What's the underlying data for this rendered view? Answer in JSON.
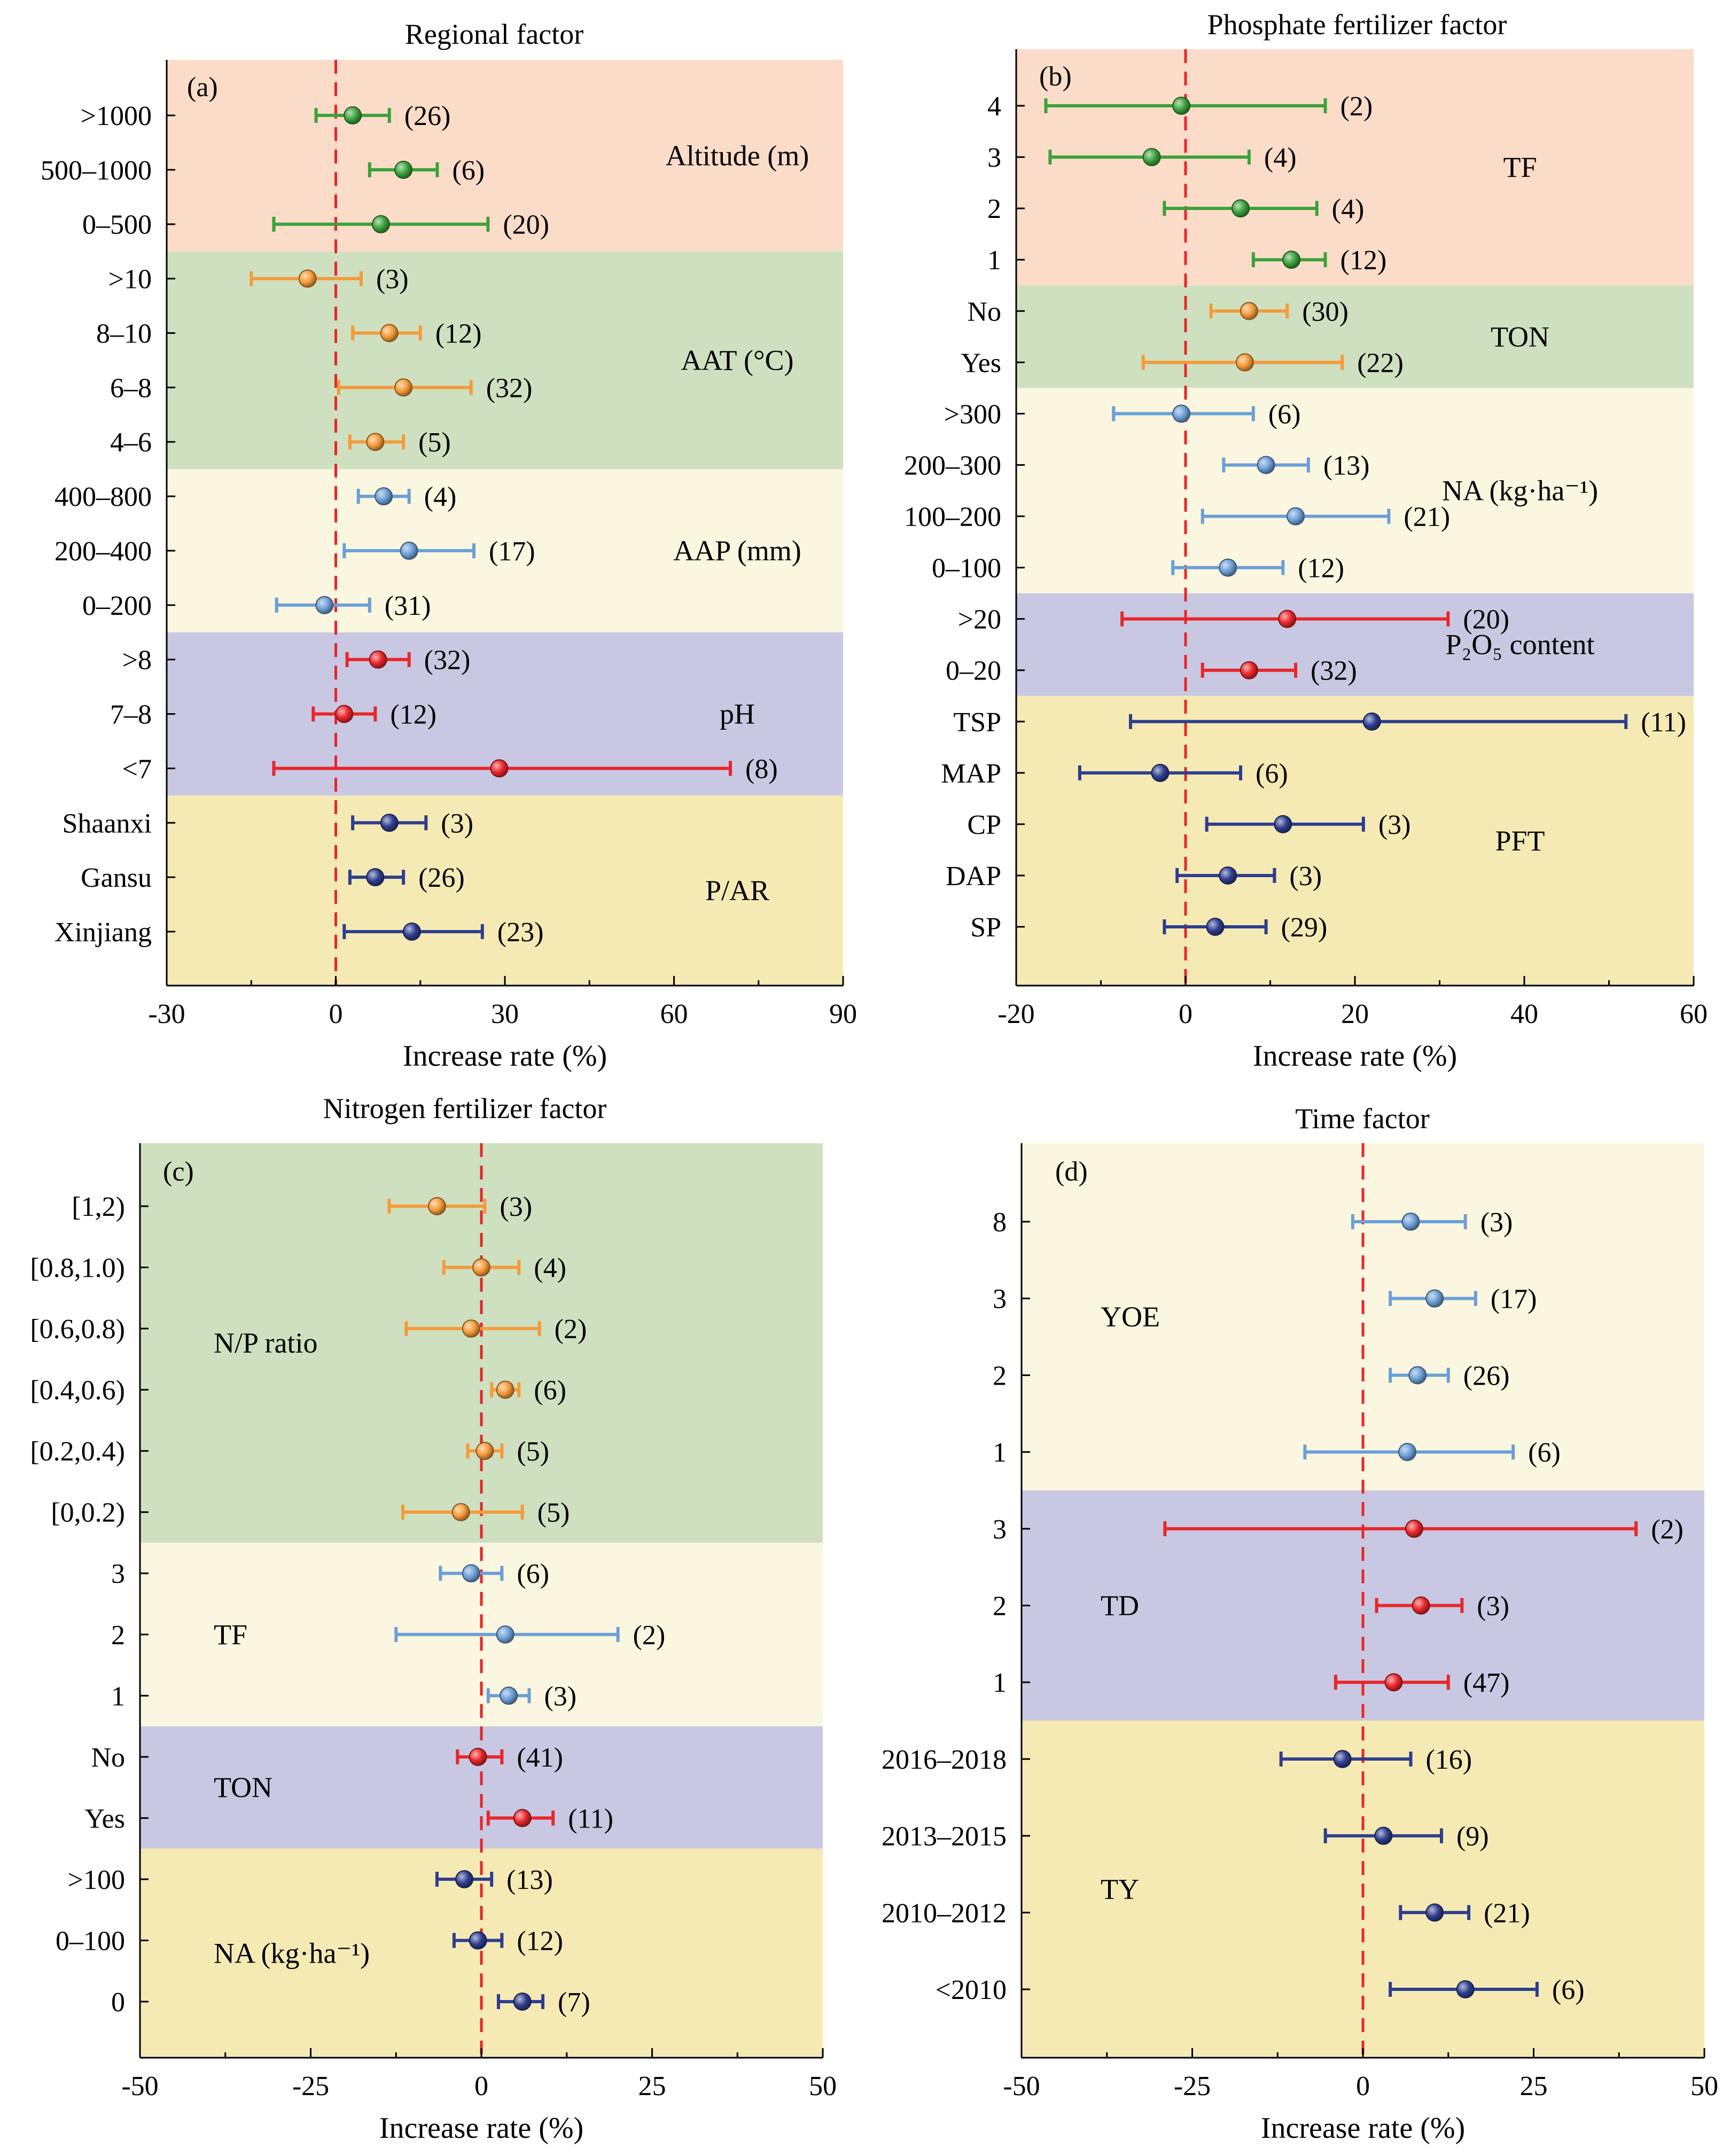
{
  "figure": {
    "colors": {
      "green": "#3aa23a",
      "orange": "#f59a38",
      "lightblue": "#6b9fd6",
      "red": "#e8262a",
      "navy": "#2e3e8e",
      "bg_peach": "#fbdcc8",
      "bg_green": "#cee0c0",
      "bg_cream": "#fbf6df",
      "bg_lavender": "#c9c8e2",
      "bg_khaki": "#f6eab4",
      "zero_line": "#e8262a"
    }
  },
  "chart_data": [
    {
      "id": "a",
      "type": "forest",
      "panel_label": "(a)",
      "title": "Regional factor",
      "xlabel": "Increase rate (%)",
      "xlim": [
        -30,
        90
      ],
      "xticks": [
        -30,
        0,
        30,
        60,
        90
      ],
      "xtick_labels": [
        "-30",
        "0",
        "30",
        "60",
        "90"
      ],
      "groups": [
        {
          "name": "Altitude (m)",
          "bg": "bg_peach",
          "color": "green",
          "rows": [
            {
              "label": ">1000",
              "mean": 3,
              "lo": -3.5,
              "hi": 9.5,
              "n": "(26)"
            },
            {
              "label": "500–1000",
              "mean": 12,
              "lo": 6,
              "hi": 18,
              "n": "(6)"
            },
            {
              "label": "0–500",
              "mean": 8,
              "lo": -11,
              "hi": 27,
              "n": "(20)"
            }
          ]
        },
        {
          "name": "AAT (°C)",
          "bg": "bg_green",
          "color": "orange",
          "rows": [
            {
              "label": ">10",
              "mean": -5,
              "lo": -15,
              "hi": 4.5,
              "n": "(3)"
            },
            {
              "label": "8–10",
              "mean": 9.5,
              "lo": 3,
              "hi": 15,
              "n": "(12)"
            },
            {
              "label": "6–8",
              "mean": 12,
              "lo": 0.5,
              "hi": 24,
              "n": "(32)"
            },
            {
              "label": "4–6",
              "mean": 7,
              "lo": 2.5,
              "hi": 12,
              "n": "(5)"
            }
          ]
        },
        {
          "name": "AAP (mm)",
          "bg": "bg_cream",
          "color": "lightblue",
          "rows": [
            {
              "label": "400–800",
              "mean": 8.5,
              "lo": 4,
              "hi": 13,
              "n": "(4)"
            },
            {
              "label": "200–400",
              "mean": 13,
              "lo": 1.5,
              "hi": 24.5,
              "n": "(17)"
            },
            {
              "label": "0–200",
              "mean": -2,
              "lo": -10.5,
              "hi": 6,
              "n": "(31)"
            }
          ]
        },
        {
          "name": "pH",
          "bg": "bg_lavender",
          "color": "red",
          "rows": [
            {
              "label": ">8",
              "mean": 7.5,
              "lo": 2,
              "hi": 13,
              "n": "(32)"
            },
            {
              "label": "7–8",
              "mean": 1.5,
              "lo": -4,
              "hi": 7,
              "n": "(12)"
            },
            {
              "label": "<7",
              "mean": 29,
              "lo": -11,
              "hi": 70,
              "n": "(8)"
            }
          ]
        },
        {
          "name": "P/AR",
          "bg": "bg_khaki",
          "color": "navy",
          "rows": [
            {
              "label": "Shaanxi",
              "mean": 9.5,
              "lo": 3,
              "hi": 16,
              "n": "(3)"
            },
            {
              "label": "Gansu",
              "mean": 7,
              "lo": 2.5,
              "hi": 12,
              "n": "(26)"
            },
            {
              "label": "Xinjiang",
              "mean": 13.5,
              "lo": 1.5,
              "hi": 26,
              "n": "(23)"
            }
          ]
        }
      ]
    },
    {
      "id": "b",
      "type": "forest",
      "panel_label": "(b)",
      "title": "Phosphate fertilizer factor",
      "xlabel": "Increase rate (%)",
      "xlim": [
        -20,
        60
      ],
      "xticks": [
        -20,
        0,
        20,
        40,
        60
      ],
      "xtick_labels": [
        "-20",
        "0",
        "20",
        "40",
        "60"
      ],
      "groups": [
        {
          "name": "TF",
          "bg": "bg_peach",
          "color": "green",
          "rows": [
            {
              "label": "4",
              "mean": -0.5,
              "lo": -16.5,
              "hi": 16.5,
              "n": "(2)"
            },
            {
              "label": "3",
              "mean": -4,
              "lo": -16,
              "hi": 7.5,
              "n": "(4)"
            },
            {
              "label": "2",
              "mean": 6.5,
              "lo": -2.5,
              "hi": 15.5,
              "n": "(4)"
            },
            {
              "label": "1",
              "mean": 12.5,
              "lo": 8,
              "hi": 16.5,
              "n": "(12)"
            }
          ]
        },
        {
          "name": "TON",
          "bg": "bg_green",
          "color": "orange",
          "rows": [
            {
              "label": "No",
              "mean": 7.5,
              "lo": 3,
              "hi": 12,
              "n": "(30)"
            },
            {
              "label": "Yes",
              "mean": 7,
              "lo": -5,
              "hi": 18.5,
              "n": "(22)"
            }
          ]
        },
        {
          "name": "NA (kg·ha⁻¹)",
          "bg": "bg_cream",
          "color": "lightblue",
          "rows": [
            {
              "label": ">300",
              "mean": -0.5,
              "lo": -8.5,
              "hi": 8,
              "n": "(6)"
            },
            {
              "label": "200–300",
              "mean": 9.5,
              "lo": 4.5,
              "hi": 14.5,
              "n": "(13)"
            },
            {
              "label": "100–200",
              "mean": 13,
              "lo": 2,
              "hi": 24,
              "n": "(21)"
            },
            {
              "label": "0–100",
              "mean": 5,
              "lo": -1.5,
              "hi": 11.5,
              "n": "(12)"
            }
          ]
        },
        {
          "name": "P₂O₅ content",
          "bg": "bg_lavender",
          "color": "red",
          "rows": [
            {
              "label": ">20",
              "mean": 12,
              "lo": -7.5,
              "hi": 31,
              "n": "(20)"
            },
            {
              "label": "0–20",
              "mean": 7.5,
              "lo": 2,
              "hi": 13,
              "n": "(32)"
            }
          ]
        },
        {
          "name": "PFT",
          "bg": "bg_khaki",
          "color": "navy",
          "rows": [
            {
              "label": "TSP",
              "mean": 22,
              "lo": -6.5,
              "hi": 52,
              "n": "(11)"
            },
            {
              "label": "MAP",
              "mean": -3,
              "lo": -12.5,
              "hi": 6.5,
              "n": "(6)"
            },
            {
              "label": "CP",
              "mean": 11.5,
              "lo": 2.5,
              "hi": 21,
              "n": "(3)"
            },
            {
              "label": "DAP",
              "mean": 5,
              "lo": -1,
              "hi": 10.5,
              "n": "(3)"
            },
            {
              "label": "SP",
              "mean": 3.5,
              "lo": -2.5,
              "hi": 9.5,
              "n": "(29)"
            }
          ]
        }
      ]
    },
    {
      "id": "c",
      "type": "forest",
      "panel_label": "(c)",
      "title": "Nitrogen fertilizer factor",
      "xlabel": "Increase rate (%)",
      "xlim": [
        -50,
        50
      ],
      "xticks": [
        -50,
        -25,
        0,
        25,
        50
      ],
      "xtick_labels": [
        "-50",
        "-25",
        "0",
        "25",
        "50"
      ],
      "groups": [
        {
          "name": "N/P ratio",
          "bg": "bg_green",
          "color": "orange",
          "rows": [
            {
              "label": "[1,2)",
              "mean": -6.5,
              "lo": -13.5,
              "hi": 0.5,
              "n": "(3)"
            },
            {
              "label": "[0.8,1.0)",
              "mean": 0,
              "lo": -5.5,
              "hi": 5.5,
              "n": "(4)"
            },
            {
              "label": "[0.6,0.8)",
              "mean": -1.5,
              "lo": -11,
              "hi": 8.5,
              "n": "(2)"
            },
            {
              "label": "[0.4,0.6)",
              "mean": 3.5,
              "lo": 1.5,
              "hi": 5.5,
              "n": "(6)"
            },
            {
              "label": "[0.2,0.4)",
              "mean": 0.5,
              "lo": -2,
              "hi": 3,
              "n": "(5)"
            },
            {
              "label": "[0,0.2)",
              "mean": -3,
              "lo": -11.5,
              "hi": 6,
              "n": "(5)"
            }
          ]
        },
        {
          "name": "TF",
          "bg": "bg_cream",
          "color": "lightblue",
          "rows": [
            {
              "label": "3",
              "mean": -1.5,
              "lo": -6,
              "hi": 3,
              "n": "(6)"
            },
            {
              "label": "2",
              "mean": 3.5,
              "lo": -12.5,
              "hi": 20,
              "n": "(2)"
            },
            {
              "label": "1",
              "mean": 4,
              "lo": 1,
              "hi": 7,
              "n": "(3)"
            }
          ]
        },
        {
          "name": "TON",
          "bg": "bg_lavender",
          "color": "red",
          "rows": [
            {
              "label": "No",
              "mean": -0.5,
              "lo": -3.5,
              "hi": 3,
              "n": "(41)"
            },
            {
              "label": "Yes",
              "mean": 6,
              "lo": 1,
              "hi": 10.5,
              "n": "(11)"
            }
          ]
        },
        {
          "name": "NA (kg·ha⁻¹)",
          "bg": "bg_khaki",
          "color": "navy",
          "rows": [
            {
              "label": ">100",
              "mean": -2.5,
              "lo": -6.5,
              "hi": 1.5,
              "n": "(13)"
            },
            {
              "label": "0–100",
              "mean": -0.5,
              "lo": -4,
              "hi": 3,
              "n": "(12)"
            },
            {
              "label": "0",
              "mean": 6,
              "lo": 2.5,
              "hi": 9,
              "n": "(7)"
            }
          ]
        }
      ]
    },
    {
      "id": "d",
      "type": "forest",
      "panel_label": "(d)",
      "title": "Time factor",
      "xlabel": "Increase rate (%)",
      "xlim": [
        -50,
        50
      ],
      "xticks": [
        -50,
        -25,
        0,
        25,
        50
      ],
      "xtick_labels": [
        "-50",
        "-25",
        "0",
        "25",
        "50"
      ],
      "groups": [
        {
          "name": "YOE",
          "bg": "bg_cream",
          "color": "lightblue",
          "rows": [
            {
              "label": "8",
              "mean": 7,
              "lo": -1.5,
              "hi": 15,
              "n": "(3)"
            },
            {
              "label": "3",
              "mean": 10.5,
              "lo": 4,
              "hi": 16.5,
              "n": "(17)"
            },
            {
              "label": "2",
              "mean": 8,
              "lo": 4,
              "hi": 12.5,
              "n": "(26)"
            },
            {
              "label": "1",
              "mean": 6.5,
              "lo": -8.5,
              "hi": 22,
              "n": "(6)"
            }
          ]
        },
        {
          "name": "TD",
          "bg": "bg_lavender",
          "color": "red",
          "rows": [
            {
              "label": "3",
              "mean": 7.5,
              "lo": -29,
              "hi": 40,
              "n": "(2)"
            },
            {
              "label": "2",
              "mean": 8.5,
              "lo": 2,
              "hi": 14.5,
              "n": "(3)"
            },
            {
              "label": "1",
              "mean": 4.5,
              "lo": -4,
              "hi": 12.5,
              "n": "(47)"
            }
          ]
        },
        {
          "name": "TY",
          "bg": "bg_khaki",
          "color": "navy",
          "rows": [
            {
              "label": "2016–2018",
              "mean": -3,
              "lo": -12,
              "hi": 7,
              "n": "(16)"
            },
            {
              "label": "2013–2015",
              "mean": 3,
              "lo": -5.5,
              "hi": 11.5,
              "n": "(9)"
            },
            {
              "label": "2010–2012",
              "mean": 10.5,
              "lo": 5.5,
              "hi": 15.5,
              "n": "(21)"
            },
            {
              "label": "<2010",
              "mean": 15,
              "lo": 4,
              "hi": 25.5,
              "n": "(6)"
            }
          ]
        }
      ]
    }
  ]
}
